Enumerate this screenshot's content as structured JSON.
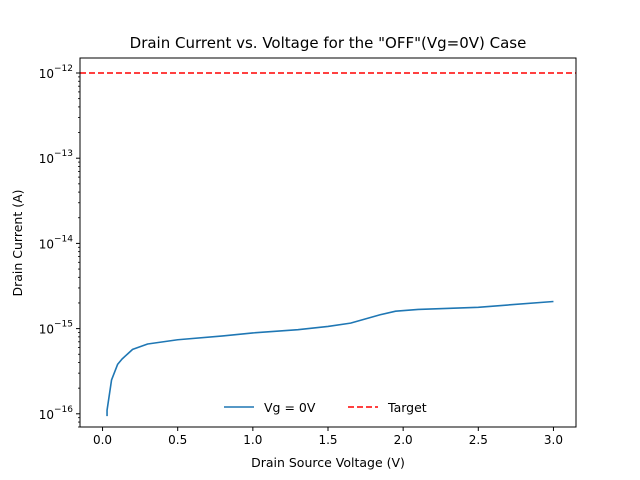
{
  "chart_data": {
    "type": "line",
    "title": "Drain Current vs. Voltage for the \"OFF\"(Vg=0V) Case",
    "xlabel": "Drain Source Voltage (V)",
    "ylabel": "Drain Current (A)",
    "xlim": [
      -0.15,
      3.15
    ],
    "ylim": [
      7e-17,
      1.5e-12
    ],
    "yscale": "log",
    "grid": false,
    "legend_position": "lower-center",
    "x_ticks": [
      {
        "value": 0.0,
        "label": "0.0"
      },
      {
        "value": 0.5,
        "label": "0.5"
      },
      {
        "value": 1.0,
        "label": "1.0"
      },
      {
        "value": 1.5,
        "label": "1.5"
      },
      {
        "value": 2.0,
        "label": "2.0"
      },
      {
        "value": 2.5,
        "label": "2.5"
      },
      {
        "value": 3.0,
        "label": "3.0"
      }
    ],
    "y_ticks": [
      {
        "value": 1e-16,
        "base": "10",
        "exp": "−16"
      },
      {
        "value": 1e-15,
        "base": "10",
        "exp": "−15"
      },
      {
        "value": 1e-14,
        "base": "10",
        "exp": "−14"
      },
      {
        "value": 1e-13,
        "base": "10",
        "exp": "−13"
      },
      {
        "value": 1e-12,
        "base": "10",
        "exp": "−12"
      }
    ],
    "series": [
      {
        "name": "Vg = 0V",
        "color": "#1f77b4",
        "style": "solid",
        "x": [
          0.03,
          0.03,
          0.06,
          0.1,
          0.13,
          0.2,
          0.3,
          0.5,
          0.8,
          1.0,
          1.3,
          1.5,
          1.65,
          1.75,
          1.85,
          1.95,
          2.1,
          2.5,
          3.0
        ],
        "y": [
          9.4e-17,
          1.1e-16,
          2.5e-16,
          3.8e-16,
          4.4e-16,
          5.7e-16,
          6.6e-16,
          7.4e-16,
          8.2e-16,
          8.9e-16,
          9.7e-16,
          1.06e-15,
          1.16e-15,
          1.3e-15,
          1.46e-15,
          1.6e-15,
          1.68e-15,
          1.78e-15,
          2.08e-15
        ]
      },
      {
        "name": "Target",
        "color": "#ff0000",
        "style": "dashed",
        "x": [
          -0.15,
          3.15
        ],
        "y": [
          1e-12,
          1e-12
        ]
      }
    ]
  }
}
